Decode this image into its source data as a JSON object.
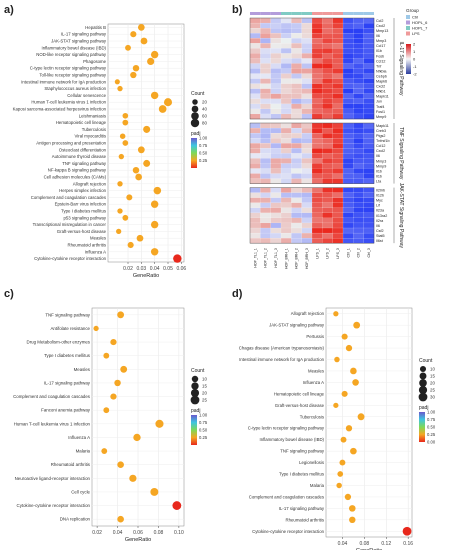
{
  "panels": {
    "a": {
      "letter": "a)",
      "chart_data": {
        "type": "scatter",
        "xlabel": "GeneRatio",
        "xlim": [
          0.005,
          0.062
        ],
        "xticks": [
          0.02,
          0.03,
          0.04,
          0.05,
          0.06
        ],
        "grid": true,
        "legend_position": "right",
        "size_legend": {
          "title": "Count",
          "values": [
            20,
            40,
            60,
            80
          ]
        },
        "color_legend": {
          "title": "padj",
          "ticks": [
            "1.00",
            "0.75",
            "0.50",
            "0.25"
          ]
        },
        "terms": [
          {
            "label": "Hepatitis B",
            "x": 0.03,
            "count": 40,
            "padj": 0.2
          },
          {
            "label": "IL-17 signaling pathway",
            "x": 0.024,
            "count": 30,
            "padj": 0.18
          },
          {
            "label": "JAK-STAT signaling pathway",
            "x": 0.032,
            "count": 42,
            "padj": 0.22
          },
          {
            "label": "Inflammatory bowel disease (IBD)",
            "x": 0.02,
            "count": 25,
            "padj": 0.15
          },
          {
            "label": "NOD-like receptor signaling pathway",
            "x": 0.04,
            "count": 55,
            "padj": 0.18
          },
          {
            "label": "Phagosome",
            "x": 0.037,
            "count": 50,
            "padj": 0.2
          },
          {
            "label": "C-type lectin receptor signaling pathway",
            "x": 0.026,
            "count": 35,
            "padj": 0.16
          },
          {
            "label": "Toll-like receptor signaling pathway",
            "x": 0.024,
            "count": 33,
            "padj": 0.18
          },
          {
            "label": "Intestinal immune network for IgA production",
            "x": 0.012,
            "count": 15,
            "padj": 0.2
          },
          {
            "label": "Staphylococcus aureus infection",
            "x": 0.014,
            "count": 18,
            "padj": 0.22
          },
          {
            "label": "Cellular senescence",
            "x": 0.04,
            "count": 55,
            "padj": 0.2
          },
          {
            "label": "Human T-cell leukemia virus 1 infection",
            "x": 0.05,
            "count": 70,
            "padj": 0.2
          },
          {
            "label": "Kaposi sarcoma-associated herpesvirus infection",
            "x": 0.046,
            "count": 62,
            "padj": 0.2
          },
          {
            "label": "Leishmaniasis",
            "x": 0.018,
            "count": 22,
            "padj": 0.18
          },
          {
            "label": "Hematopoietic cell lineage",
            "x": 0.018,
            "count": 24,
            "padj": 0.2
          },
          {
            "label": "Tuberculosis",
            "x": 0.034,
            "count": 48,
            "padj": 0.2
          },
          {
            "label": "Viral myocarditis",
            "x": 0.016,
            "count": 20,
            "padj": 0.2
          },
          {
            "label": "Antigen processing and presentation",
            "x": 0.018,
            "count": 23,
            "padj": 0.2
          },
          {
            "label": "Osteoclast differentiation",
            "x": 0.03,
            "count": 42,
            "padj": 0.2
          },
          {
            "label": "Autoimmune thyroid disease",
            "x": 0.015,
            "count": 18,
            "padj": 0.2
          },
          {
            "label": "TNF signaling pathway",
            "x": 0.034,
            "count": 45,
            "padj": 0.2
          },
          {
            "label": "NF-kappa B signaling pathway",
            "x": 0.026,
            "count": 36,
            "padj": 0.2
          },
          {
            "label": "Cell adhesion molecules (CAMs)",
            "x": 0.028,
            "count": 40,
            "padj": 0.2
          },
          {
            "label": "Allograft rejection",
            "x": 0.014,
            "count": 18,
            "padj": 0.2
          },
          {
            "label": "Herpes simplex infection",
            "x": 0.042,
            "count": 58,
            "padj": 0.2
          },
          {
            "label": "Complement and coagulation cascades",
            "x": 0.021,
            "count": 28,
            "padj": 0.2
          },
          {
            "label": "Epstein-Barr virus infection",
            "x": 0.04,
            "count": 55,
            "padj": 0.2
          },
          {
            "label": "Type I diabetes mellitus",
            "x": 0.014,
            "count": 18,
            "padj": 0.2
          },
          {
            "label": "p53 signaling pathway",
            "x": 0.018,
            "count": 24,
            "padj": 0.2
          },
          {
            "label": "Transcriptional misregulation in cancer",
            "x": 0.04,
            "count": 55,
            "padj": 0.2
          },
          {
            "label": "Graft-versus-host disease",
            "x": 0.013,
            "count": 17,
            "padj": 0.2
          },
          {
            "label": "Measles",
            "x": 0.029,
            "count": 40,
            "padj": 0.2
          },
          {
            "label": "Rheumatoid arthritis",
            "x": 0.022,
            "count": 30,
            "padj": 0.2
          },
          {
            "label": "Influenza A",
            "x": 0.04,
            "count": 55,
            "padj": 0.2
          },
          {
            "label": "Cytokine-cytokine receptor interaction",
            "x": 0.057,
            "count": 80,
            "padj": 0.05
          }
        ]
      }
    },
    "b": {
      "letter": "b)",
      "chart_data": {
        "type": "heatmap",
        "columns": [
          "HOP_TL1_1",
          "HOP_TL1_2",
          "HOP_TL1_3",
          "HOP_BRH_1",
          "HOP_BRH_2",
          "HOP_BRH_3",
          "LPS_1",
          "LPS_2",
          "LPS_3",
          "Ctrl_1",
          "Ctrl_2",
          "Ctrl_3"
        ],
        "group_legend": {
          "title": "Group",
          "items": [
            {
              "label": "Ctrl",
              "color": "#9ec9e8"
            },
            {
              "label": "HOPL_6",
              "color": "#b39ddb"
            },
            {
              "label": "HOPL_7",
              "color": "#80cbc4"
            },
            {
              "label": "LPS",
              "color": "#ef9a9a"
            }
          ]
        },
        "scale_ticks": [
          "2",
          "1",
          "0",
          "-1",
          "-2"
        ],
        "blocks": [
          {
            "label": "IL-17 Signaling Pathway",
            "genes": [
              "Ccl2",
              "Cxcl2",
              "Mmp13",
              "Il6",
              "Mmp3",
              "Ccl17",
              "Il1b",
              "Fosb",
              "Ccl12",
              "Tnf",
              "Nfkbia",
              "Cebpb",
              "Mapk6",
              "Cxcl2",
              "Nfkb1",
              "Mapk11",
              "Jun",
              "Traf4",
              "Fosl1",
              "Mmp9"
            ]
          },
          {
            "label": "TNF Signaling Pathway",
            "genes": [
              "Mapk11",
              "Creb3",
              "Ptgs2",
              "Tnfrsf1b",
              "Ccl12",
              "Cxcl2",
              "Il6",
              "Mmp3",
              "Mmp9",
              "Il1b",
              "Il1b",
              "Lta"
            ]
          },
          {
            "label": "JAK-STAT Signaling Pathway",
            "genes": [
              "Il20rb",
              "Il12b",
              "Myc",
              "Lif",
              "Il23a",
              "Il13ra2",
              "Il2ra",
              "Il6",
              "Csf2",
              "Stat5",
              "Il6st"
            ]
          }
        ]
      }
    },
    "c": {
      "letter": "c)",
      "chart_data": {
        "type": "scatter",
        "xlabel": "GeneRatio",
        "xlim": [
          0.015,
          0.105
        ],
        "xticks": [
          0.02,
          0.04,
          0.06,
          0.08,
          0.1
        ],
        "xtick_labels": [
          "0.02",
          "0.04",
          "0.06",
          "0.08",
          "0.10"
        ],
        "grid": true,
        "legend_position": "right",
        "size_legend": {
          "title": "Count",
          "values": [
            10,
            15,
            20,
            25
          ]
        },
        "color_legend": {
          "title": "padj",
          "ticks": [
            "1.00",
            "0.75",
            "0.50",
            "0.25"
          ]
        },
        "terms": [
          {
            "label": "TNF signaling pathway",
            "x": 0.043,
            "count": 12,
            "padj": 0.15
          },
          {
            "label": "Antifolate resistance",
            "x": 0.019,
            "count": 5,
            "padj": 0.2
          },
          {
            "label": "Drug Metabolism-other enzymes",
            "x": 0.036,
            "count": 9,
            "padj": 0.2
          },
          {
            "label": "Type I diabetes mellitus",
            "x": 0.029,
            "count": 7,
            "padj": 0.2
          },
          {
            "label": "Measles",
            "x": 0.046,
            "count": 12,
            "padj": 0.2
          },
          {
            "label": "IL-17 signaling pathway",
            "x": 0.04,
            "count": 10,
            "padj": 0.2
          },
          {
            "label": "Complement and coagulation cascades",
            "x": 0.036,
            "count": 9,
            "padj": 0.2
          },
          {
            "label": "Fanconi anemia pathway",
            "x": 0.029,
            "count": 7,
            "padj": 0.2
          },
          {
            "label": "Human T-cell leukemia virus 1 infection",
            "x": 0.081,
            "count": 20,
            "padj": 0.15
          },
          {
            "label": "Influenza A",
            "x": 0.059,
            "count": 15,
            "padj": 0.2
          },
          {
            "label": "Malaria",
            "x": 0.027,
            "count": 7,
            "padj": 0.2
          },
          {
            "label": "Rheumatoid arthritis",
            "x": 0.043,
            "count": 11,
            "padj": 0.2
          },
          {
            "label": "Neuroactive ligand-receptor interaction",
            "x": 0.055,
            "count": 14,
            "padj": 0.2
          },
          {
            "label": "Cell cycle",
            "x": 0.076,
            "count": 19,
            "padj": 0.15
          },
          {
            "label": "Cytokine-cytokine receptor interaction",
            "x": 0.098,
            "count": 25,
            "padj": 0.1
          },
          {
            "label": "DNA replication",
            "x": 0.043,
            "count": 11,
            "padj": 0.2
          }
        ]
      }
    },
    "d": {
      "letter": "d)",
      "chart_data": {
        "type": "scatter",
        "xlabel": "GeneRatio",
        "xlim": [
          0.01,
          0.167
        ],
        "xticks": [
          0.04,
          0.08,
          0.12,
          0.16
        ],
        "grid": true,
        "legend_position": "right",
        "size_legend": {
          "title": "Count",
          "values": [
            10,
            15,
            20,
            25,
            30
          ]
        },
        "color_legend": {
          "title": "padj",
          "ticks": [
            "1.00",
            "0.75",
            "0.50",
            "0.25",
            "0.00"
          ]
        },
        "terms": [
          {
            "label": "Allograft rejection",
            "x": 0.028,
            "count": 6,
            "padj": 0.2
          },
          {
            "label": "JAK-STAT signaling pathway",
            "x": 0.066,
            "count": 14,
            "padj": 0.2
          },
          {
            "label": "Pertussis",
            "x": 0.044,
            "count": 10,
            "padj": 0.2
          },
          {
            "label": "Chagas disease (American trypanosomiasis)",
            "x": 0.052,
            "count": 11,
            "padj": 0.2
          },
          {
            "label": "Intestinal immune network for IgA production",
            "x": 0.03,
            "count": 7,
            "padj": 0.2
          },
          {
            "label": "Measles",
            "x": 0.06,
            "count": 13,
            "padj": 0.2
          },
          {
            "label": "Influenza A",
            "x": 0.064,
            "count": 13,
            "padj": 0.2
          },
          {
            "label": "Hematopoietic cell lineage",
            "x": 0.044,
            "count": 10,
            "padj": 0.2
          },
          {
            "label": "Graft-versus-host disease",
            "x": 0.028,
            "count": 6,
            "padj": 0.2
          },
          {
            "label": "Tuberculosis",
            "x": 0.074,
            "count": 15,
            "padj": 0.2
          },
          {
            "label": "C-type lectin receptor signaling pathway",
            "x": 0.052,
            "count": 11,
            "padj": 0.2
          },
          {
            "label": "Inflammatory bowel disease (IBD)",
            "x": 0.042,
            "count": 9,
            "padj": 0.2
          },
          {
            "label": "TNF signaling pathway",
            "x": 0.06,
            "count": 13,
            "padj": 0.2
          },
          {
            "label": "Legionellosis",
            "x": 0.04,
            "count": 9,
            "padj": 0.2
          },
          {
            "label": "Type I diabetes mellitus",
            "x": 0.036,
            "count": 8,
            "padj": 0.2
          },
          {
            "label": "Malaria",
            "x": 0.034,
            "count": 7,
            "padj": 0.2
          },
          {
            "label": "Complement and coagulation cascades",
            "x": 0.05,
            "count": 11,
            "padj": 0.2
          },
          {
            "label": "IL-17 signaling pathway",
            "x": 0.058,
            "count": 13,
            "padj": 0.2
          },
          {
            "label": "Rheumatoid arthritis",
            "x": 0.058,
            "count": 12,
            "padj": 0.2
          },
          {
            "label": "Cytokine-cytokine receptor interaction",
            "x": 0.158,
            "count": 30,
            "padj": 0.05
          }
        ]
      }
    }
  }
}
